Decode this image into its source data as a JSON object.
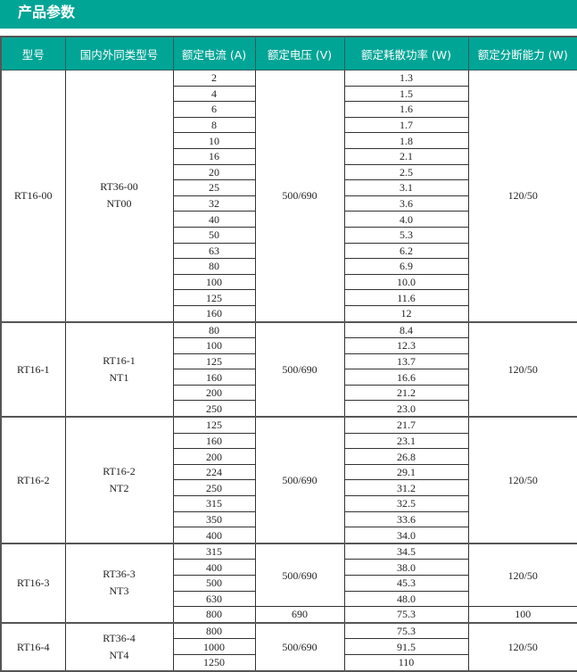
{
  "title": "产品参数",
  "colors": {
    "header_bg": "#00A596",
    "header_text": "#FFFFFF"
  },
  "table": {
    "headers": [
      "型号",
      "国内外同类型号",
      "额定电流 (A)",
      "额定电压 (V)",
      "额定耗散功率 (W)",
      "额定分断能力 (W)"
    ],
    "groups": [
      {
        "model": "RT16-00",
        "equivalents": [
          "RT36-00",
          "NT00"
        ],
        "rows": [
          [
            "2",
            "1.3"
          ],
          [
            "4",
            "1.5"
          ],
          [
            "6",
            "1.6"
          ],
          [
            "8",
            "1.7"
          ],
          [
            "10",
            "1.8"
          ],
          [
            "16",
            "2.1"
          ],
          [
            "20",
            "2.5"
          ],
          [
            "25",
            "3.1"
          ],
          [
            "32",
            "3.6"
          ],
          [
            "40",
            "4.0"
          ],
          [
            "50",
            "5.3"
          ],
          [
            "63",
            "6.2"
          ],
          [
            "80",
            "6.9"
          ],
          [
            "100",
            "10.0"
          ],
          [
            "125",
            "11.6"
          ],
          [
            "160",
            "12"
          ]
        ],
        "segments": [
          {
            "span": 16,
            "voltage": "500/690",
            "breaking": "120/50"
          }
        ]
      },
      {
        "model": "RT16-1",
        "equivalents": [
          "RT16-1",
          "NT1"
        ],
        "rows": [
          [
            "80",
            "8.4"
          ],
          [
            "100",
            "12.3"
          ],
          [
            "125",
            "13.7"
          ],
          [
            "160",
            "16.6"
          ],
          [
            "200",
            "21.2"
          ],
          [
            "250",
            "23.0"
          ]
        ],
        "segments": [
          {
            "span": 6,
            "voltage": "500/690",
            "breaking": "120/50"
          }
        ]
      },
      {
        "model": "RT16-2",
        "equivalents": [
          "RT16-2",
          "NT2"
        ],
        "rows": [
          [
            "125",
            "21.7"
          ],
          [
            "160",
            "23.1"
          ],
          [
            "200",
            "26.8"
          ],
          [
            "224",
            "29.1"
          ],
          [
            "250",
            "31.2"
          ],
          [
            "315",
            "32.5"
          ],
          [
            "350",
            "33.6"
          ],
          [
            "400",
            "34.0"
          ]
        ],
        "segments": [
          {
            "span": 8,
            "voltage": "500/690",
            "breaking": "120/50"
          }
        ]
      },
      {
        "model": "RT16-3",
        "equivalents": [
          "RT36-3",
          "NT3"
        ],
        "rows": [
          [
            "315",
            "34.5"
          ],
          [
            "400",
            "38.0"
          ],
          [
            "500",
            "45.3"
          ],
          [
            "630",
            "48.0"
          ],
          [
            "800",
            "75.3"
          ]
        ],
        "segments": [
          {
            "span": 4,
            "voltage": "500/690",
            "breaking": "120/50"
          },
          {
            "span": 1,
            "voltage": "690",
            "breaking": "100"
          }
        ]
      },
      {
        "model": "RT16-4",
        "equivalents": [
          "RT36-4",
          "NT4"
        ],
        "rows": [
          [
            "800",
            "75.3"
          ],
          [
            "1000",
            "91.5"
          ],
          [
            "1250",
            "110"
          ]
        ],
        "segments": [
          {
            "span": 3,
            "voltage": "500/690",
            "breaking": "120/50"
          }
        ]
      }
    ]
  }
}
